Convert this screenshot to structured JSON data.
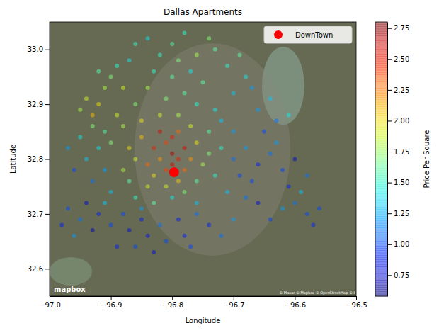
{
  "chart_data": {
    "type": "scatter",
    "title": "Dallas Apartments",
    "x_label": "Longitude",
    "y_label": "Latitude",
    "xlim": [
      -97.0,
      -96.5
    ],
    "ylim": [
      32.55,
      33.05
    ],
    "xticks": [
      {
        "value": -97.0,
        "label": "−97.0"
      },
      {
        "value": -96.9,
        "label": "−96.9"
      },
      {
        "value": -96.8,
        "label": "−96.8"
      },
      {
        "value": -96.7,
        "label": "−96.7"
      },
      {
        "value": -96.6,
        "label": "−96.6"
      },
      {
        "value": -96.5,
        "label": "−96.5"
      }
    ],
    "yticks": [
      32.6,
      32.7,
      32.8,
      32.9,
      {
        "value": 33.0,
        "label": "33.0"
      }
    ],
    "legend": "upper right",
    "colorbar": {
      "label": "Price Per Square",
      "range": [
        0.58,
        2.8
      ],
      "ticks": [
        0.75,
        {
          "value": 1.0,
          "label": "1.00"
        },
        1.25,
        {
          "value": 1.5,
          "label": "1.50"
        },
        1.75,
        {
          "value": 2.0,
          "label": "2.00"
        },
        2.25,
        {
          "value": 2.5,
          "label": "2.50"
        },
        2.75
      ]
    },
    "annotations": [
      "mapbox",
      "© Maxar © Mapbox © OpenStreetMap © I"
    ],
    "series": [
      {
        "marker": "circle",
        "x": [
          -96.8,
          -96.79,
          -96.81,
          -96.78,
          -96.8,
          -96.82,
          -96.79,
          -96.83,
          -96.81,
          -96.78,
          -96.77,
          -96.84,
          -96.8,
          -96.82,
          -96.79,
          -96.76,
          -96.85,
          -96.83,
          -96.81,
          -96.78,
          -96.86,
          -96.87,
          -96.75,
          -96.74,
          -96.88,
          -96.84,
          -96.76,
          -96.85,
          -96.82,
          -96.79,
          -96.77,
          -96.74,
          -96.88,
          -96.9,
          -96.87,
          -96.73,
          -96.8,
          -96.83,
          -96.86,
          -96.76,
          -96.81,
          -96.78,
          -96.84,
          -96.76,
          -96.73,
          -96.86,
          -96.8,
          -96.83,
          -96.77,
          -96.75,
          -96.79,
          -96.82,
          -96.76,
          -96.8,
          -96.84,
          -96.78,
          -96.73,
          -96.71,
          -96.74,
          -96.87,
          -96.86,
          -96.7,
          -96.68,
          -96.69,
          -96.72,
          -96.7,
          -96.92,
          -96.94,
          -96.93,
          -96.91,
          -96.9,
          -96.95,
          -96.89,
          -96.93,
          -96.91,
          -96.89,
          -96.92,
          -96.88,
          -96.92,
          -96.94,
          -96.91,
          -96.93,
          -96.9,
          -96.95,
          -96.97,
          -96.96,
          -96.88,
          -96.85,
          -96.82,
          -96.79,
          -96.87,
          -96.84,
          -96.81,
          -96.78,
          -96.9,
          -96.92,
          -96.94,
          -96.95,
          -96.97,
          -96.98,
          -96.96,
          -96.93,
          -96.89,
          -96.86,
          -96.83,
          -96.76,
          -96.74,
          -96.77,
          -96.72,
          -96.7,
          -96.85,
          -96.91,
          -96.7,
          -96.68,
          -96.66,
          -96.67,
          -96.64,
          -96.65,
          -96.63,
          -96.62,
          -96.61,
          -96.6,
          -96.58,
          -96.57,
          -96.62,
          -96.64,
          -96.66,
          -96.59,
          -96.63,
          -96.66,
          -96.69,
          -96.71,
          -96.68,
          -96.61,
          -96.64,
          -96.67,
          -96.72,
          -96.56,
          -96.58,
          -96.6
        ],
        "values": [
          32.79,
          32.8,
          32.78,
          32.78,
          32.81,
          32.8,
          32.76,
          32.82,
          32.83,
          32.82,
          32.8,
          32.79,
          32.84,
          32.85,
          32.85,
          32.83,
          32.84,
          32.77,
          32.75,
          32.74,
          32.8,
          32.82,
          32.79,
          32.81,
          32.78,
          32.75,
          32.76,
          32.87,
          32.88,
          32.88,
          32.86,
          32.85,
          32.86,
          32.83,
          32.76,
          32.77,
          32.73,
          32.72,
          32.73,
          32.72,
          32.91,
          32.92,
          32.93,
          32.9,
          32.89,
          32.9,
          32.95,
          32.96,
          32.96,
          32.94,
          32.98,
          32.99,
          32.99,
          33.01,
          33.02,
          33.03,
          33.0,
          32.97,
          33.02,
          32.98,
          33.01,
          32.92,
          32.95,
          32.99,
          32.87,
          32.85,
          32.9,
          32.91,
          32.88,
          32.93,
          32.95,
          32.89,
          32.88,
          32.86,
          32.85,
          32.97,
          32.96,
          32.93,
          32.82,
          32.8,
          32.78,
          32.76,
          32.74,
          32.84,
          32.82,
          32.78,
          32.7,
          32.69,
          32.68,
          32.69,
          32.67,
          32.66,
          32.65,
          32.66,
          32.68,
          32.7,
          32.72,
          32.69,
          32.71,
          32.68,
          32.66,
          32.67,
          32.64,
          32.64,
          32.63,
          32.7,
          32.68,
          32.64,
          32.66,
          32.69,
          32.71,
          32.72,
          32.8,
          32.82,
          32.79,
          32.76,
          32.81,
          32.85,
          32.83,
          32.78,
          32.75,
          32.72,
          32.7,
          32.68,
          32.71,
          32.69,
          32.72,
          32.74,
          32.87,
          32.89,
          32.77,
          32.74,
          32.73,
          32.88,
          32.91,
          32.93,
          32.82,
          32.71,
          32.77,
          32.8
        ],
        "price": [
          2.6,
          2.5,
          2.4,
          2.3,
          2.7,
          2.2,
          2.1,
          2.5,
          2.4,
          2.6,
          2.2,
          2.3,
          2.5,
          2.6,
          2.3,
          2.0,
          2.1,
          2.0,
          1.9,
          1.7,
          1.9,
          2.0,
          1.8,
          1.7,
          1.8,
          1.9,
          1.6,
          2.0,
          1.9,
          1.8,
          1.9,
          1.6,
          1.8,
          1.7,
          1.6,
          1.5,
          1.4,
          1.6,
          1.5,
          1.3,
          1.7,
          1.6,
          1.8,
          1.5,
          1.4,
          1.7,
          1.6,
          1.5,
          1.4,
          1.6,
          1.7,
          1.5,
          1.8,
          1.6,
          1.4,
          1.5,
          1.6,
          1.5,
          1.7,
          1.4,
          1.5,
          1.3,
          1.4,
          1.6,
          1.3,
          1.2,
          2.0,
          1.9,
          2.1,
          1.8,
          1.7,
          1.8,
          1.9,
          1.7,
          1.6,
          1.5,
          1.6,
          1.9,
          1.4,
          1.3,
          1.2,
          1.1,
          1.3,
          1.4,
          1.2,
          1.0,
          1.0,
          0.9,
          1.1,
          0.9,
          0.8,
          0.8,
          1.0,
          0.9,
          1.0,
          0.9,
          0.8,
          1.1,
          1.0,
          0.9,
          1.2,
          0.7,
          0.9,
          1.0,
          0.8,
          1.1,
          0.9,
          1.0,
          1.1,
          1.2,
          1.2,
          1.3,
          1.1,
          1.2,
          0.9,
          1.0,
          1.1,
          1.0,
          1.2,
          1.0,
          0.9,
          1.1,
          1.0,
          0.9,
          1.2,
          1.0,
          0.8,
          1.3,
          1.1,
          1.2,
          1.0,
          1.3,
          1.1,
          1.4,
          1.3,
          1.2,
          1.5,
          1.0,
          1.1,
          0.8
        ]
      },
      {
        "name": "DownTown",
        "marker": "circle",
        "color": "#ff0000",
        "x": [
          -96.797
        ],
        "values": [
          32.776
        ]
      }
    ]
  }
}
